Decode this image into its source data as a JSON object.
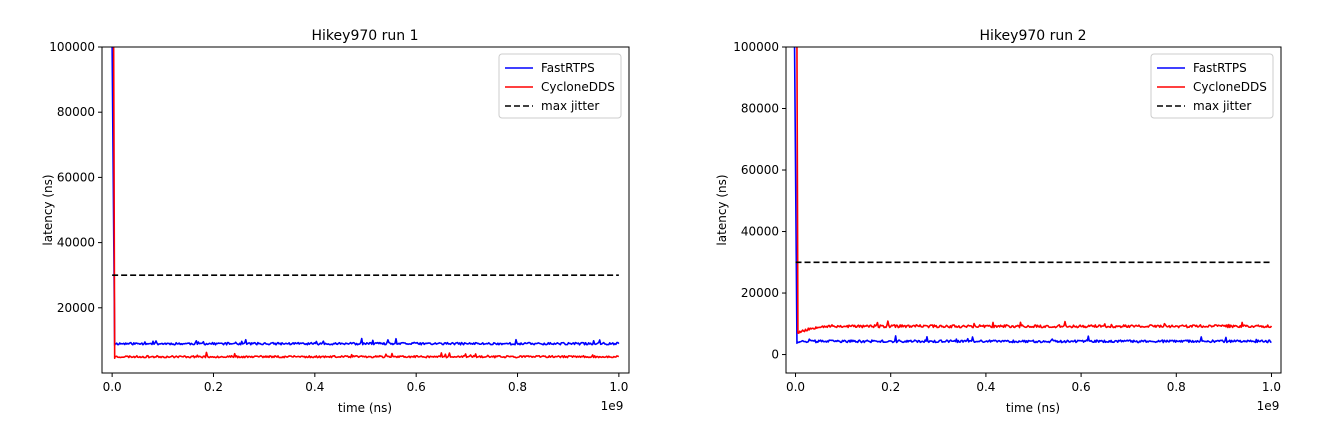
{
  "chart_data": [
    {
      "type": "line",
      "title": "Hikey970 run 1",
      "xlabel": "time (ns)",
      "ylabel": "latency (ns)",
      "x_offset_label": "1e9",
      "xlim": [
        -0.02,
        1.02
      ],
      "ylim": [
        0,
        100000
      ],
      "xticks": [
        0.0,
        0.2,
        0.4,
        0.6,
        0.8,
        1.0
      ],
      "xtick_labels": [
        "0.0",
        "0.2",
        "0.4",
        "0.6",
        "0.8",
        "1.0"
      ],
      "yticks": [
        20000,
        40000,
        60000,
        80000,
        100000
      ],
      "ytick_labels": [
        "20000",
        "40000",
        "60000",
        "80000",
        "100000"
      ],
      "legend_position": "top-right",
      "series": [
        {
          "name": "FastRTPS",
          "color": "#0000ff",
          "style": "solid",
          "spike": [
            0.0,
            100000
          ],
          "x": [
            0.005,
            1.0
          ],
          "baseline": 9000,
          "noise": 700,
          "seed": 11
        },
        {
          "name": "CycloneDDS",
          "color": "#ff0000",
          "style": "solid",
          "spike": [
            0.003,
            100000
          ],
          "x": [
            0.005,
            1.0
          ],
          "baseline": 5000,
          "noise": 600,
          "seed": 23
        },
        {
          "name": "max jitter",
          "color": "#000000",
          "style": "dashed",
          "x": [
            0.0,
            1.0
          ],
          "y": [
            30000,
            30000
          ]
        }
      ]
    },
    {
      "type": "line",
      "title": "Hikey970 run 2",
      "xlabel": "time (ns)",
      "ylabel": "latency (ns)",
      "x_offset_label": "1e9",
      "xlim": [
        -0.02,
        1.02
      ],
      "ylim": [
        -6000,
        100000
      ],
      "xticks": [
        0.0,
        0.2,
        0.4,
        0.6,
        0.8,
        1.0
      ],
      "xtick_labels": [
        "0.0",
        "0.2",
        "0.4",
        "0.6",
        "0.8",
        "1.0"
      ],
      "yticks": [
        0,
        20000,
        40000,
        60000,
        80000,
        100000
      ],
      "ytick_labels": [
        "0",
        "20000",
        "40000",
        "60000",
        "80000",
        "100000"
      ],
      "legend_position": "top-right",
      "series": [
        {
          "name": "FastRTPS",
          "color": "#0000ff",
          "style": "solid",
          "spike": [
            -0.002,
            100000
          ],
          "x": [
            0.003,
            1.0
          ],
          "baseline": 4300,
          "noise": 800,
          "seed": 37
        },
        {
          "name": "CycloneDDS",
          "color": "#ff0000",
          "style": "solid",
          "spike": [
            0.003,
            100000
          ],
          "x": [
            0.005,
            1.0
          ],
          "baseline": 9200,
          "noise": 900,
          "seed": 53,
          "ramp": [
            0.05,
            7000
          ]
        },
        {
          "name": "max jitter",
          "color": "#000000",
          "style": "dashed",
          "x": [
            0.0,
            1.0
          ],
          "y": [
            30000,
            30000
          ]
        }
      ]
    }
  ]
}
